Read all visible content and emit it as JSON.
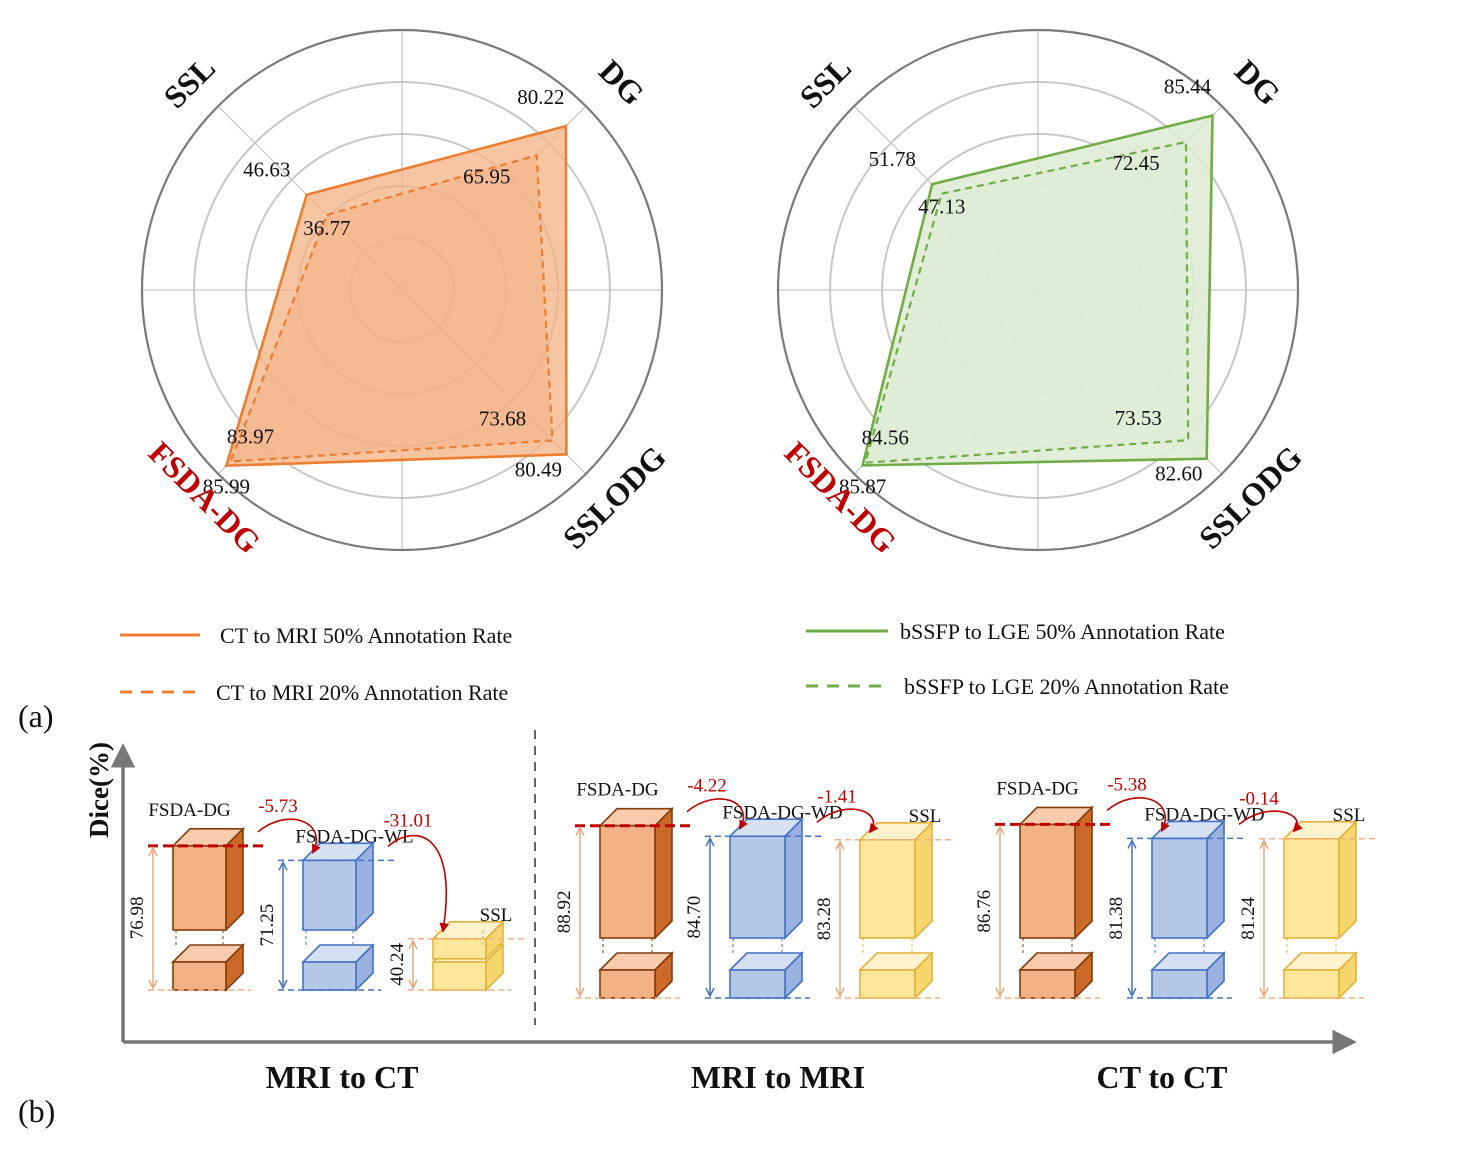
{
  "panel_labels": {
    "a": "(a)",
    "b": "(b)"
  },
  "colors": {
    "orange": "#ED7D31",
    "orange_fill": "#F4B183",
    "green": "#70AD47",
    "green_fill": "#DDEBD3",
    "red": "#C00000",
    "blue": "#4472C4",
    "yellow": "#FFD966"
  },
  "radar_axes": [
    "SSL",
    "DG",
    "SSLODG",
    "FSDA-DG"
  ],
  "legend": [
    {
      "label": "CT to MRI 50% Annotation Rate",
      "color": "#ED7D31",
      "style": "solid"
    },
    {
      "label": "CT to MRI 20% Annotation Rate",
      "color": "#ED7D31",
      "style": "dashed"
    },
    {
      "label": "bSSFP to LGE 50% Annotation Rate",
      "color": "#70AD47",
      "style": "solid"
    },
    {
      "label": "bSSFP to LGE 20% Annotation Rate",
      "color": "#70AD47",
      "style": "dashed"
    }
  ],
  "y_axis_label": "Dice(%)",
  "chart_data": [
    {
      "type": "radar",
      "axes": [
        "SSL",
        "DG",
        "SSLODG",
        "FSDA-DG"
      ],
      "highlight_axis": "FSDA-DG",
      "rmax": 90,
      "rings": 4,
      "color": "orange",
      "series": [
        {
          "name": "CT to MRI 50% Annotation Rate",
          "style": "solid",
          "values": [
            46.63,
            80.22,
            80.49,
            85.99
          ],
          "labels": [
            "46.63",
            "80.22",
            "80.49",
            "85.99"
          ]
        },
        {
          "name": "CT to MRI 20% Annotation Rate",
          "style": "dashed",
          "values": [
            36.77,
            65.95,
            73.68,
            83.97
          ],
          "labels": [
            "36.77",
            "65.95",
            "73.68",
            "83.97"
          ]
        }
      ]
    },
    {
      "type": "radar",
      "axes": [
        "SSL",
        "DG",
        "SSLODG",
        "FSDA-DG"
      ],
      "highlight_axis": "FSDA-DG",
      "rmax": 90,
      "rings": 4,
      "color": "green",
      "series": [
        {
          "name": "bSSFP to LGE 50% Annotation Rate",
          "style": "solid",
          "values": [
            51.78,
            85.44,
            82.6,
            85.87
          ],
          "labels": [
            "51.78",
            "85.44",
            "82.60",
            "85.87"
          ]
        },
        {
          "name": "bSSFP to LGE 20% Annotation Rate",
          "style": "dashed",
          "values": [
            47.13,
            72.45,
            73.53,
            84.56
          ],
          "labels": [
            "47.13",
            "72.45",
            "73.53",
            "84.56"
          ]
        }
      ]
    },
    {
      "type": "bar",
      "style": "3d-box",
      "groups": [
        {
          "title": "MRI to CT",
          "bars": [
            {
              "name": "FSDA-DG",
              "value": 76.98,
              "label": "76.98",
              "color": "orange"
            },
            {
              "name": "FSDA-DG-WL",
              "value": 71.25,
              "label": "71.25",
              "color": "blue",
              "delta": "-5.73"
            },
            {
              "name": "SSL",
              "value": 40.24,
              "label": "40.24",
              "color": "yellow",
              "delta": "-31.01"
            }
          ]
        },
        {
          "title": "MRI to MRI",
          "bars": [
            {
              "name": "FSDA-DG",
              "value": 88.92,
              "label": "88.92",
              "color": "orange"
            },
            {
              "name": "FSDA-DG-WD",
              "value": 84.7,
              "label": "84.70",
              "color": "blue",
              "delta": "-4.22"
            },
            {
              "name": "SSL",
              "value": 83.28,
              "label": "83.28",
              "color": "yellow",
              "delta": "-1.41"
            }
          ]
        },
        {
          "title": "CT to CT",
          "bars": [
            {
              "name": "FSDA-DG",
              "value": 86.76,
              "label": "86.76",
              "color": "orange"
            },
            {
              "name": "FSDA-DG-WD",
              "value": 81.38,
              "label": "81.38",
              "color": "blue",
              "delta": "-5.38"
            },
            {
              "name": "SSL",
              "value": 81.24,
              "label": "81.24",
              "color": "yellow",
              "delta": "-0.14"
            }
          ]
        }
      ]
    }
  ]
}
